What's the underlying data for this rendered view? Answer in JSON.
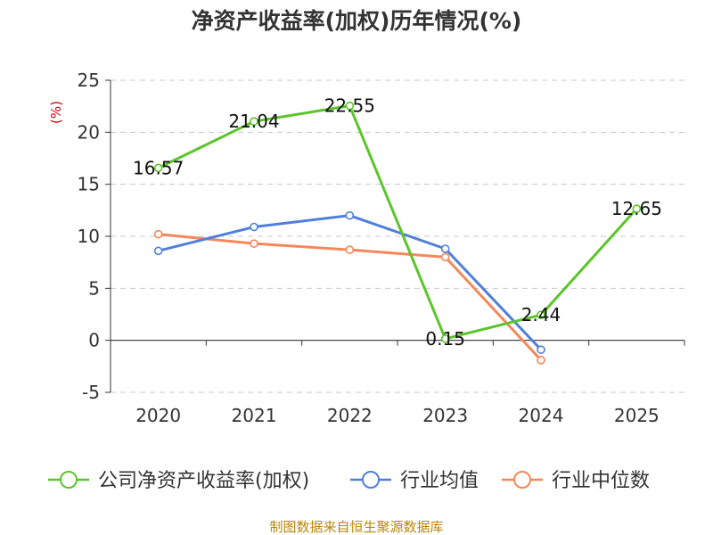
{
  "chart_data": {
    "type": "line",
    "title": "净资产收益率(加权)历年情况(%)",
    "ylabel": "(%)",
    "xlabel": "",
    "categories": [
      "2020",
      "2021",
      "2022",
      "2023",
      "2024",
      "2025"
    ],
    "ylim": [
      -5,
      25
    ],
    "yticks": [
      -5,
      0,
      5,
      10,
      15,
      20,
      25
    ],
    "ytick_labels": [
      "-5",
      "0",
      "5",
      "10",
      "15",
      "20",
      "25"
    ],
    "grid": true,
    "legend_position": "bottom",
    "series": [
      {
        "name": "公司净资产收益率(加权)",
        "color": "#5bc52a",
        "values": [
          16.57,
          21.04,
          22.55,
          0.15,
          2.44,
          12.65
        ],
        "labels": [
          "16.57",
          "21.04",
          "22.55",
          "0.15",
          "2.44",
          "12.65"
        ]
      },
      {
        "name": "行业均值",
        "color": "#4f7fdb",
        "values": [
          8.6,
          10.9,
          12.0,
          8.8,
          -0.9,
          null
        ]
      },
      {
        "name": "行业中位数",
        "color": "#f5885a",
        "values": [
          10.2,
          9.3,
          8.7,
          8.0,
          -1.9,
          null
        ]
      }
    ]
  },
  "source": "制图数据来自恒生聚源数据库"
}
